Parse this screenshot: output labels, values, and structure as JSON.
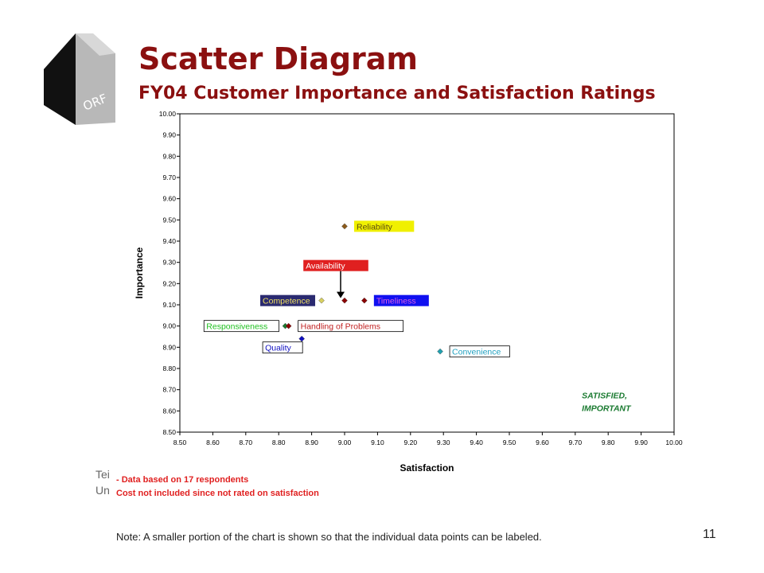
{
  "slide": {
    "title": "Scatter Diagram",
    "subtitle": "FY04 Customer Importance and Satisfaction Ratings",
    "logo_text": "ORF",
    "behind_text": [
      "Tei",
      "Un"
    ],
    "notes": [
      "Data based on 17 respondents",
      "Cost not included since not rated on satisfaction"
    ],
    "footnote": "Note: A smaller portion of the chart is shown so that the individual data points can be labeled.",
    "page_number": "11"
  },
  "chart_data": {
    "type": "scatter",
    "xlabel": "Satisfaction",
    "ylabel": "Importance",
    "xlim": [
      8.5,
      10.0
    ],
    "ylim": [
      8.5,
      10.0
    ],
    "x_ticks": [
      "8.50",
      "8.60",
      "8.70",
      "8.80",
      "8.90",
      "9.00",
      "9.10",
      "9.20",
      "9.30",
      "9.40",
      "9.50",
      "9.60",
      "9.70",
      "9.80",
      "9.90",
      "10.00"
    ],
    "y_ticks": [
      "8.50",
      "8.60",
      "8.70",
      "8.80",
      "8.90",
      "9.00",
      "9.10",
      "9.20",
      "9.30",
      "9.40",
      "9.50",
      "9.60",
      "9.70",
      "9.80",
      "9.90",
      "10.00"
    ],
    "grid": false,
    "points": [
      {
        "name": "Reliability",
        "x": 9.0,
        "y": 9.47,
        "color": "#8b5a1a",
        "label_bg": "#f0f000",
        "label_fg": "#5a4a10",
        "label_side": "right"
      },
      {
        "name": "Availability",
        "x": 9.0,
        "y": 9.12,
        "color": "#8b0000",
        "label_bg": "#e02020",
        "label_fg": "#ffffff",
        "label_side": "above-arrow"
      },
      {
        "name": "Competence",
        "x": 8.93,
        "y": 9.12,
        "color": "#d8d060",
        "label_bg": "#2a2a70",
        "label_fg": "#f0e060",
        "label_side": "left"
      },
      {
        "name": "Timeliness",
        "x": 9.06,
        "y": 9.12,
        "color": "#8b0000",
        "label_bg": "#1010f0",
        "label_fg": "#e060e0",
        "label_side": "right"
      },
      {
        "name": "Responsiveness",
        "x": 8.82,
        "y": 9.0,
        "color": "#1a7a30",
        "label_bg": "#ffffff",
        "label_fg": "#20c020",
        "label_side": "left"
      },
      {
        "name": "Handling of Problems",
        "x": 8.83,
        "y": 9.0,
        "color": "#8b0000",
        "label_bg": "#ffffff",
        "label_fg": "#c02020",
        "label_side": "right"
      },
      {
        "name": "Quality",
        "x": 8.87,
        "y": 8.94,
        "color": "#1010c0",
        "label_bg": "#ffffff",
        "label_fg": "#1010c0",
        "label_side": "below-left"
      },
      {
        "name": "Convenience",
        "x": 9.29,
        "y": 8.88,
        "color": "#20a0b0",
        "label_bg": "#ffffff",
        "label_fg": "#20a0c0",
        "label_side": "right"
      }
    ],
    "annotations": [
      {
        "text": "SATISFIED,",
        "x": 9.72,
        "y": 8.66,
        "color": "#1a7a30"
      },
      {
        "text": "IMPORTANT",
        "x": 9.72,
        "y": 8.6,
        "color": "#1a7a30"
      }
    ]
  }
}
